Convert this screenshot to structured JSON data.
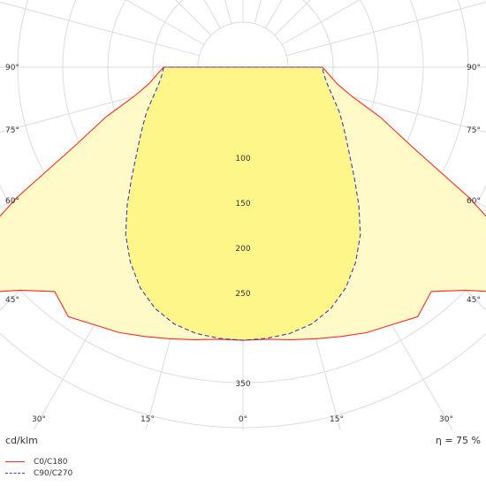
{
  "chart_data": {
    "type": "polar",
    "unit_label": "cd/klm",
    "efficiency_label": "η = 75 %",
    "radial_ticks": [
      {
        "value": 100,
        "label": "100"
      },
      {
        "value": 150,
        "label": "150"
      },
      {
        "value": 200,
        "label": "200"
      },
      {
        "value": 250,
        "label": "250"
      },
      {
        "value": 350,
        "label": "350"
      }
    ],
    "radial_grid": [
      50,
      100,
      150,
      200,
      250,
      300,
      350,
      400
    ],
    "angle_labels_side": [
      {
        "deg": 90,
        "label": "90°"
      },
      {
        "deg": 75,
        "label": "75°"
      },
      {
        "deg": 60,
        "label": "60°"
      },
      {
        "deg": 45,
        "label": "45°"
      }
    ],
    "angle_labels_bottom": [
      {
        "deg": -30,
        "label": "30°"
      },
      {
        "deg": -15,
        "label": "15°"
      },
      {
        "deg": 0,
        "label": "0°"
      },
      {
        "deg": 15,
        "label": "15°"
      },
      {
        "deg": 30,
        "label": "30°"
      }
    ],
    "series": [
      {
        "name": "C0/C180",
        "color": "#ff2a1a",
        "fill": "#fffac8",
        "style": "solid",
        "angles": [
          0,
          5,
          10,
          15,
          20,
          25,
          30,
          35,
          40,
          45,
          50,
          55,
          60,
          65,
          70,
          75,
          80,
          85,
          90
        ],
        "values": [
          303,
          303,
          307,
          312,
          318,
          325,
          330,
          338,
          325,
          350,
          390,
          400,
          290,
          205,
          162,
          125,
          106,
          96,
          88
        ]
      },
      {
        "name": "C90/C270",
        "color": "#3a3ac0",
        "fill": "#fff68a",
        "style": "dashed",
        "angles": [
          0,
          5,
          10,
          15,
          20,
          25,
          30,
          35,
          40,
          45,
          50,
          55,
          60,
          65,
          70,
          75,
          80,
          85,
          90
        ],
        "values": [
          303,
          302,
          300,
          295,
          285,
          270,
          250,
          227,
          200,
          175,
          155,
          140,
          128,
          118,
          108,
          100,
          94,
          90,
          88
        ]
      }
    ]
  }
}
